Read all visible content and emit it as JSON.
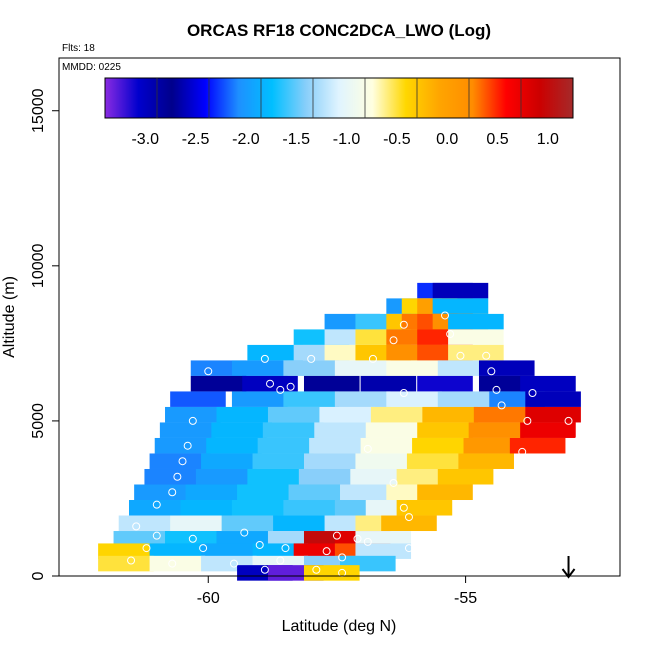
{
  "chart_data": {
    "type": "heatmap",
    "title": "ORCAS RF18 CONC2DCA_LWO (Log)",
    "flights_label": "Flts: 18",
    "date_label": "MMDD: 0225",
    "xlabel": "Latitude (deg N)",
    "ylabel": "Altitude (m)",
    "xlim": [
      -62.9,
      -52.0
    ],
    "ylim": [
      0,
      16700
    ],
    "x_ticks": [
      -60,
      -55
    ],
    "x_tick_labels": [
      "-60",
      "-55"
    ],
    "y_ticks": [
      0,
      5000,
      10000,
      15000
    ],
    "y_tick_labels": [
      "0",
      "5000",
      "10000",
      "15000"
    ],
    "colorbar": {
      "range": [
        -3.4,
        1.25
      ],
      "ticks": [
        -3.0,
        -2.5,
        -2.0,
        -1.5,
        -1.0,
        -0.5,
        0.0,
        0.5,
        1.0
      ],
      "tick_labels": [
        "-3.0",
        "-2.5",
        "-2.0",
        "-1.5",
        "-1.0",
        "-0.5",
        "0.0",
        "0.5",
        "1.0"
      ],
      "colors": [
        "#8a2be2",
        "#0000cd",
        "#00008b",
        "#0000ff",
        "#1e90ff",
        "#00bfff",
        "#87cefa",
        "#e0f4ff",
        "#ffffe0",
        "#ffd700",
        "#ffa500",
        "#ff8c00",
        "#ff0000",
        "#cc0000",
        "#a52a2a"
      ]
    },
    "grid": false,
    "arrow": {
      "lat": -53.0,
      "direction": "down"
    },
    "cells": [
      {
        "lat": -55.4,
        "alt": 9200,
        "value": -2.3
      },
      {
        "lat": -55.1,
        "alt": 9200,
        "value": -2.6
      },
      {
        "lat": -56.0,
        "alt": 8700,
        "value": -2.0
      },
      {
        "lat": -55.7,
        "alt": 8700,
        "value": -0.4
      },
      {
        "lat": -55.4,
        "alt": 8700,
        "value": 0.0
      },
      {
        "lat": -55.1,
        "alt": 8700,
        "value": -1.8
      },
      {
        "lat": -57.2,
        "alt": 8200,
        "value": -2.0
      },
      {
        "lat": -56.6,
        "alt": 8200,
        "value": -1.6
      },
      {
        "lat": -56.0,
        "alt": 8200,
        "value": -0.3
      },
      {
        "lat": -55.7,
        "alt": 8200,
        "value": 0.3
      },
      {
        "lat": -55.4,
        "alt": 8200,
        "value": 0.4
      },
      {
        "lat": -55.1,
        "alt": 8200,
        "value": 0.2
      },
      {
        "lat": -54.8,
        "alt": 8200,
        "value": -1.8
      },
      {
        "lat": -57.8,
        "alt": 7700,
        "value": -1.7
      },
      {
        "lat": -57.2,
        "alt": 7700,
        "value": -1.2
      },
      {
        "lat": -56.6,
        "alt": 7700,
        "value": -0.5
      },
      {
        "lat": -56.0,
        "alt": 7700,
        "value": 0.3
      },
      {
        "lat": -55.4,
        "alt": 7700,
        "value": 0.5
      },
      {
        "lat": -54.8,
        "alt": 7700,
        "value": -0.8
      },
      {
        "lat": -58.7,
        "alt": 7200,
        "value": -1.8
      },
      {
        "lat": -57.8,
        "alt": 7200,
        "value": -1.3
      },
      {
        "lat": -57.2,
        "alt": 7200,
        "value": -0.7
      },
      {
        "lat": -56.6,
        "alt": 7200,
        "value": -0.3
      },
      {
        "lat": -56.0,
        "alt": 7200,
        "value": 0.2
      },
      {
        "lat": -55.4,
        "alt": 7200,
        "value": 0.4
      },
      {
        "lat": -54.8,
        "alt": 7200,
        "value": -0.6
      },
      {
        "lat": -59.8,
        "alt": 6700,
        "value": -2.1
      },
      {
        "lat": -59.0,
        "alt": 6700,
        "value": -2.0
      },
      {
        "lat": -58.0,
        "alt": 6700,
        "value": -1.4
      },
      {
        "lat": -57.0,
        "alt": 6700,
        "value": -1.0
      },
      {
        "lat": -56.0,
        "alt": 6700,
        "value": -0.8
      },
      {
        "lat": -55.0,
        "alt": 6700,
        "value": -1.2
      },
      {
        "lat": -54.2,
        "alt": 6700,
        "value": -2.6
      },
      {
        "lat": -59.8,
        "alt": 6200,
        "value": -2.8
      },
      {
        "lat": -58.8,
        "alt": 6200,
        "value": -3.0
      },
      {
        "lat": -57.6,
        "alt": 6200,
        "value": -2.7
      },
      {
        "lat": -56.5,
        "alt": 6200,
        "value": -2.9
      },
      {
        "lat": -55.4,
        "alt": 6200,
        "value": -3.1
      },
      {
        "lat": -54.2,
        "alt": 6200,
        "value": -2.8
      },
      {
        "lat": -53.4,
        "alt": 6200,
        "value": -3.0
      },
      {
        "lat": -60.2,
        "alt": 5700,
        "value": -2.2
      },
      {
        "lat": -59.0,
        "alt": 5700,
        "value": -2.0
      },
      {
        "lat": -58.0,
        "alt": 5700,
        "value": -1.6
      },
      {
        "lat": -57.0,
        "alt": 5700,
        "value": -1.3
      },
      {
        "lat": -56.0,
        "alt": 5700,
        "value": -1.1
      },
      {
        "lat": -55.0,
        "alt": 5700,
        "value": -1.3
      },
      {
        "lat": -54.0,
        "alt": 5700,
        "value": -2.1
      },
      {
        "lat": -53.3,
        "alt": 5700,
        "value": -2.6
      },
      {
        "lat": -60.3,
        "alt": 5200,
        "value": -2.0
      },
      {
        "lat": -59.3,
        "alt": 5200,
        "value": -1.8
      },
      {
        "lat": -58.3,
        "alt": 5200,
        "value": -1.5
      },
      {
        "lat": -57.3,
        "alt": 5200,
        "value": -1.1
      },
      {
        "lat": -56.3,
        "alt": 5200,
        "value": -0.6
      },
      {
        "lat": -55.3,
        "alt": 5200,
        "value": -0.2
      },
      {
        "lat": -54.3,
        "alt": 5200,
        "value": 0.3
      },
      {
        "lat": -53.3,
        "alt": 5200,
        "value": 0.8
      },
      {
        "lat": -60.4,
        "alt": 4700,
        "value": -2.0
      },
      {
        "lat": -59.4,
        "alt": 4700,
        "value": -1.8
      },
      {
        "lat": -58.4,
        "alt": 4700,
        "value": -1.6
      },
      {
        "lat": -57.4,
        "alt": 4700,
        "value": -1.2
      },
      {
        "lat": -56.4,
        "alt": 4700,
        "value": -0.8
      },
      {
        "lat": -55.4,
        "alt": 4700,
        "value": -0.3
      },
      {
        "lat": -54.4,
        "alt": 4700,
        "value": 0.2
      },
      {
        "lat": -53.4,
        "alt": 4700,
        "value": 0.7
      },
      {
        "lat": -60.5,
        "alt": 4200,
        "value": -2.0
      },
      {
        "lat": -59.5,
        "alt": 4200,
        "value": -1.8
      },
      {
        "lat": -58.5,
        "alt": 4200,
        "value": -1.6
      },
      {
        "lat": -57.5,
        "alt": 4200,
        "value": -1.2
      },
      {
        "lat": -56.5,
        "alt": 4200,
        "value": -0.8
      },
      {
        "lat": -55.5,
        "alt": 4200,
        "value": -0.4
      },
      {
        "lat": -54.5,
        "alt": 4200,
        "value": 0.1
      },
      {
        "lat": -53.6,
        "alt": 4200,
        "value": 0.5
      },
      {
        "lat": -60.6,
        "alt": 3700,
        "value": -2.1
      },
      {
        "lat": -59.6,
        "alt": 3700,
        "value": -1.9
      },
      {
        "lat": -58.6,
        "alt": 3700,
        "value": -1.6
      },
      {
        "lat": -57.6,
        "alt": 3700,
        "value": -1.3
      },
      {
        "lat": -56.6,
        "alt": 3700,
        "value": -0.9
      },
      {
        "lat": -55.6,
        "alt": 3700,
        "value": -0.5
      },
      {
        "lat": -54.6,
        "alt": 3700,
        "value": -0.2
      },
      {
        "lat": -60.7,
        "alt": 3200,
        "value": -2.1
      },
      {
        "lat": -59.7,
        "alt": 3200,
        "value": -2.0
      },
      {
        "lat": -58.7,
        "alt": 3200,
        "value": -1.7
      },
      {
        "lat": -57.7,
        "alt": 3200,
        "value": -1.4
      },
      {
        "lat": -56.7,
        "alt": 3200,
        "value": -1.0
      },
      {
        "lat": -55.8,
        "alt": 3200,
        "value": -0.6
      },
      {
        "lat": -55.0,
        "alt": 3200,
        "value": -0.3
      },
      {
        "lat": -60.9,
        "alt": 2700,
        "value": -2.0
      },
      {
        "lat": -59.9,
        "alt": 2700,
        "value": -1.9
      },
      {
        "lat": -58.9,
        "alt": 2700,
        "value": -1.7
      },
      {
        "lat": -57.9,
        "alt": 2700,
        "value": -1.5
      },
      {
        "lat": -56.9,
        "alt": 2700,
        "value": -1.2
      },
      {
        "lat": -56.0,
        "alt": 2700,
        "value": -0.7
      },
      {
        "lat": -55.4,
        "alt": 2700,
        "value": -0.2
      },
      {
        "lat": -61.0,
        "alt": 2200,
        "value": -1.9
      },
      {
        "lat": -60.0,
        "alt": 2200,
        "value": -1.8
      },
      {
        "lat": -59.0,
        "alt": 2200,
        "value": -1.7
      },
      {
        "lat": -58.0,
        "alt": 2200,
        "value": -1.6
      },
      {
        "lat": -57.0,
        "alt": 2200,
        "value": -1.5
      },
      {
        "lat": -56.4,
        "alt": 2200,
        "value": -1.0
      },
      {
        "lat": -55.8,
        "alt": 2200,
        "value": -0.3
      },
      {
        "lat": -61.2,
        "alt": 1700,
        "value": -1.2
      },
      {
        "lat": -60.2,
        "alt": 1700,
        "value": -1.0
      },
      {
        "lat": -59.2,
        "alt": 1700,
        "value": -1.5
      },
      {
        "lat": -58.2,
        "alt": 1700,
        "value": -1.8
      },
      {
        "lat": -57.2,
        "alt": 1700,
        "value": -1.2
      },
      {
        "lat": -56.6,
        "alt": 1700,
        "value": -0.6
      },
      {
        "lat": -56.1,
        "alt": 1700,
        "value": -0.2
      },
      {
        "lat": -61.3,
        "alt": 1200,
        "value": -1.5
      },
      {
        "lat": -60.3,
        "alt": 1200,
        "value": -1.7
      },
      {
        "lat": -59.3,
        "alt": 1200,
        "value": -1.9
      },
      {
        "lat": -58.3,
        "alt": 1200,
        "value": -1.3
      },
      {
        "lat": -57.6,
        "alt": 1200,
        "value": 1.0
      },
      {
        "lat": -57.0,
        "alt": 1200,
        "value": 0.8
      },
      {
        "lat": -56.6,
        "alt": 1200,
        "value": -1.0
      },
      {
        "lat": -61.6,
        "alt": 800,
        "value": -0.4
      },
      {
        "lat": -60.6,
        "alt": 800,
        "value": -1.8
      },
      {
        "lat": -59.6,
        "alt": 800,
        "value": -1.9
      },
      {
        "lat": -58.6,
        "alt": 800,
        "value": -1.8
      },
      {
        "lat": -57.8,
        "alt": 800,
        "value": 0.7
      },
      {
        "lat": -57.0,
        "alt": 800,
        "value": 0.4
      },
      {
        "lat": -56.6,
        "alt": 800,
        "value": -1.2
      },
      {
        "lat": -61.6,
        "alt": 400,
        "value": -0.5
      },
      {
        "lat": -60.6,
        "alt": 400,
        "value": -0.8
      },
      {
        "lat": -59.6,
        "alt": 400,
        "value": -1.2
      },
      {
        "lat": -58.6,
        "alt": 400,
        "value": -1.0
      },
      {
        "lat": -57.6,
        "alt": 400,
        "value": -1.4
      },
      {
        "lat": -56.9,
        "alt": 400,
        "value": -1.6
      },
      {
        "lat": -58.9,
        "alt": 100,
        "value": -3.0
      },
      {
        "lat": -58.3,
        "alt": 100,
        "value": -3.3
      },
      {
        "lat": -57.6,
        "alt": 100,
        "value": -0.4
      }
    ],
    "points": [
      {
        "lat": -55.4,
        "alt": 8400
      },
      {
        "lat": -56.2,
        "alt": 8100
      },
      {
        "lat": -55.3,
        "alt": 7800
      },
      {
        "lat": -56.4,
        "alt": 7600
      },
      {
        "lat": -55.1,
        "alt": 7100
      },
      {
        "lat": -56.8,
        "alt": 7000
      },
      {
        "lat": -54.6,
        "alt": 7100
      },
      {
        "lat": -58.0,
        "alt": 7000
      },
      {
        "lat": -58.9,
        "alt": 7000
      },
      {
        "lat": -54.5,
        "alt": 6600
      },
      {
        "lat": -60.0,
        "alt": 6600
      },
      {
        "lat": -58.8,
        "alt": 6200
      },
      {
        "lat": -58.4,
        "alt": 6100
      },
      {
        "lat": -58.6,
        "alt": 6000
      },
      {
        "lat": -56.2,
        "alt": 5900
      },
      {
        "lat": -54.4,
        "alt": 6000
      },
      {
        "lat": -53.7,
        "alt": 5900
      },
      {
        "lat": -54.3,
        "alt": 5500
      },
      {
        "lat": -60.3,
        "alt": 5000
      },
      {
        "lat": -53.8,
        "alt": 5000
      },
      {
        "lat": -53.0,
        "alt": 5000
      },
      {
        "lat": -52.8,
        "alt": 4400
      },
      {
        "lat": -60.4,
        "alt": 4200
      },
      {
        "lat": -56.9,
        "alt": 4100
      },
      {
        "lat": -53.9,
        "alt": 4000
      },
      {
        "lat": -60.5,
        "alt": 3700
      },
      {
        "lat": -60.6,
        "alt": 3200
      },
      {
        "lat": -56.4,
        "alt": 3000
      },
      {
        "lat": -60.7,
        "alt": 2700
      },
      {
        "lat": -61.0,
        "alt": 2300
      },
      {
        "lat": -56.2,
        "alt": 2200
      },
      {
        "lat": -56.1,
        "alt": 1900
      },
      {
        "lat": -61.4,
        "alt": 1600
      },
      {
        "lat": -61.0,
        "alt": 1300
      },
      {
        "lat": -60.3,
        "alt": 1200
      },
      {
        "lat": -59.3,
        "alt": 1400
      },
      {
        "lat": -57.5,
        "alt": 1300
      },
      {
        "lat": -57.1,
        "alt": 1200
      },
      {
        "lat": -56.9,
        "alt": 1100
      },
      {
        "lat": -61.2,
        "alt": 900
      },
      {
        "lat": -60.1,
        "alt": 900
      },
      {
        "lat": -59.0,
        "alt": 1000
      },
      {
        "lat": -58.5,
        "alt": 900
      },
      {
        "lat": -57.7,
        "alt": 800
      },
      {
        "lat": -56.1,
        "alt": 900
      },
      {
        "lat": -61.5,
        "alt": 500
      },
      {
        "lat": -60.7,
        "alt": 400
      },
      {
        "lat": -59.5,
        "alt": 400
      },
      {
        "lat": -58.6,
        "alt": 500
      },
      {
        "lat": -57.4,
        "alt": 600
      },
      {
        "lat": -58.9,
        "alt": 200
      },
      {
        "lat": -57.9,
        "alt": 200
      },
      {
        "lat": -57.4,
        "alt": 100
      }
    ]
  }
}
